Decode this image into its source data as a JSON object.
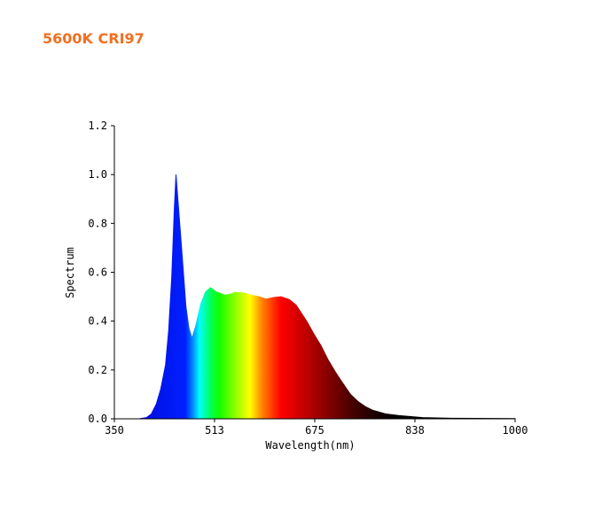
{
  "title": "5600K CRI97",
  "title_color": "#f07022",
  "chart_data": {
    "type": "area",
    "title": "5600K CRI97",
    "xlabel": "Wavelength(nm)",
    "ylabel": "Spectrum",
    "xlim": [
      350,
      1000
    ],
    "ylim": [
      0,
      1.2
    ],
    "xticks": [
      "350",
      "513",
      "675",
      "838",
      "1000"
    ],
    "yticks": [
      "0.0",
      "0.2",
      "0.4",
      "0.6",
      "0.8",
      "1.0",
      "1.2"
    ],
    "grid": false,
    "x": [
      350,
      390,
      402,
      410,
      418,
      425,
      433,
      438,
      443,
      447,
      450,
      453,
      459,
      466,
      471,
      476,
      482,
      490,
      498,
      506,
      515,
      529,
      538,
      546,
      560,
      572,
      585,
      596,
      610,
      620,
      634,
      645,
      653,
      663,
      673,
      685,
      697,
      709,
      721,
      733,
      745,
      757,
      769,
      790,
      812,
      850,
      900,
      1000
    ],
    "y": [
      0.0,
      0.0,
      0.005,
      0.02,
      0.06,
      0.12,
      0.22,
      0.36,
      0.58,
      0.85,
      1.0,
      0.9,
      0.7,
      0.46,
      0.37,
      0.33,
      0.38,
      0.47,
      0.52,
      0.537,
      0.52,
      0.506,
      0.51,
      0.518,
      0.515,
      0.506,
      0.5,
      0.49,
      0.497,
      0.5,
      0.488,
      0.465,
      0.434,
      0.395,
      0.35,
      0.3,
      0.24,
      0.19,
      0.144,
      0.1,
      0.071,
      0.05,
      0.035,
      0.02,
      0.013,
      0.005,
      0.002,
      0.001
    ],
    "color_stops": [
      {
        "nm": 350,
        "color": "#0000c8"
      },
      {
        "nm": 465,
        "color": "#0020ff"
      },
      {
        "nm": 478,
        "color": "#0090ff"
      },
      {
        "nm": 488,
        "color": "#00ffff"
      },
      {
        "nm": 505,
        "color": "#00ff60"
      },
      {
        "nm": 520,
        "color": "#10ff00"
      },
      {
        "nm": 550,
        "color": "#a0ff00"
      },
      {
        "nm": 570,
        "color": "#ffff00"
      },
      {
        "nm": 590,
        "color": "#ff8000"
      },
      {
        "nm": 620,
        "color": "#ff0000"
      },
      {
        "nm": 680,
        "color": "#a00000"
      },
      {
        "nm": 740,
        "color": "#400000"
      },
      {
        "nm": 800,
        "color": "#000000"
      },
      {
        "nm": 1000,
        "color": "#000000"
      }
    ]
  }
}
